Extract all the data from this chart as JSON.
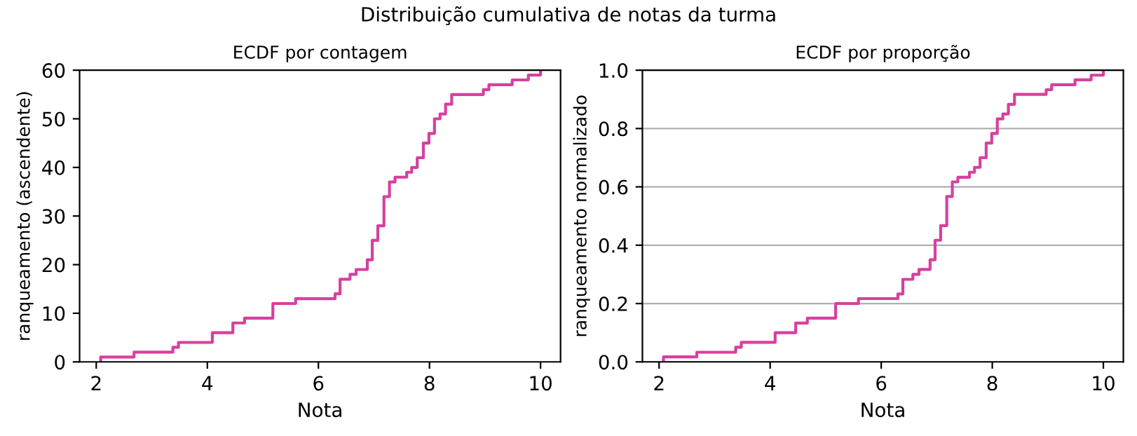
{
  "chart_data": [
    {
      "type": "step",
      "title": "ECDF por contagem",
      "xlabel": "Nota",
      "ylabel": "ranqueamento (ascendente)",
      "annotations": [
        "Distribuição cumulativa de notas da turma"
      ],
      "xlim": [
        1.7,
        10.36
      ],
      "xticks": [
        2,
        4,
        6,
        8,
        10
      ],
      "ylim": [
        0,
        60
      ],
      "yticks": [
        0,
        10,
        20,
        30,
        40,
        50,
        60
      ],
      "grid": false,
      "series": [
        {
          "color": "#d6409f",
          "x": [
            2.08,
            2.08,
            2.68,
            3.38,
            3.48,
            4.09,
            4.46,
            4.67,
            5.18,
            5.59,
            6.3,
            6.39,
            6.57,
            6.68,
            6.88,
            6.97,
            7.07,
            7.18,
            7.28,
            7.38,
            7.59,
            7.68,
            7.78,
            7.89,
            7.99,
            8.09,
            8.19,
            8.29,
            8.4,
            8.97,
            9.07,
            9.49,
            9.78,
            10.0
          ],
          "values": [
            0,
            1,
            2,
            3,
            4,
            6,
            8,
            9,
            12,
            13,
            14,
            17,
            18,
            19,
            21,
            25,
            28,
            34,
            37,
            38,
            39,
            40,
            42,
            45,
            47,
            50,
            51,
            53,
            55,
            56,
            57,
            58,
            59,
            60
          ]
        }
      ]
    },
    {
      "type": "step",
      "title": "ECDF por proporção",
      "xlabel": "Nota",
      "ylabel": "ranqueamento normalizado",
      "xlim": [
        1.7,
        10.36
      ],
      "xticks": [
        2,
        4,
        6,
        8,
        10
      ],
      "ylim": [
        0,
        1
      ],
      "yticks": [
        {
          "value": 0,
          "label": "0.0"
        },
        {
          "value": 0.2,
          "label": "0.2"
        },
        {
          "value": 0.4,
          "label": "0.4"
        },
        {
          "value": 0.6,
          "label": "0.6"
        },
        {
          "value": 0.8,
          "label": "0.8"
        },
        {
          "value": 1,
          "label": "1.0"
        }
      ],
      "grid": "y",
      "series": [
        {
          "color": "#d6409f",
          "x": [
            2.08,
            2.08,
            2.68,
            3.38,
            3.48,
            4.09,
            4.46,
            4.67,
            5.18,
            5.59,
            6.3,
            6.39,
            6.57,
            6.68,
            6.88,
            6.97,
            7.07,
            7.18,
            7.28,
            7.38,
            7.59,
            7.68,
            7.78,
            7.89,
            7.99,
            8.09,
            8.19,
            8.29,
            8.4,
            8.97,
            9.07,
            9.49,
            9.78,
            10.0
          ],
          "values": [
            0,
            0.017,
            0.033,
            0.05,
            0.067,
            0.1,
            0.133,
            0.15,
            0.2,
            0.217,
            0.233,
            0.283,
            0.3,
            0.317,
            0.35,
            0.417,
            0.467,
            0.567,
            0.617,
            0.633,
            0.65,
            0.667,
            0.7,
            0.75,
            0.783,
            0.833,
            0.85,
            0.883,
            0.917,
            0.933,
            0.95,
            0.967,
            0.983,
            1.0
          ]
        }
      ]
    }
  ]
}
